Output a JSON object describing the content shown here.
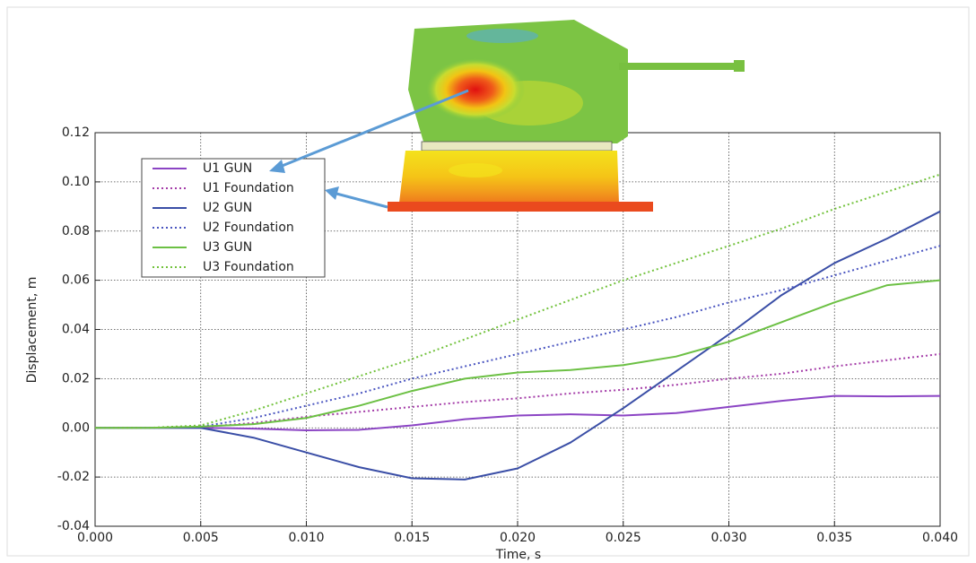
{
  "chart_data": {
    "type": "line",
    "x_label": "Time, s",
    "y_label": "Displacement, m",
    "x": [
      0,
      0.0025,
      0.005,
      0.0075,
      0.01,
      0.0125,
      0.015,
      0.0175,
      0.02,
      0.0225,
      0.025,
      0.0275,
      0.03,
      0.0325,
      0.035,
      0.0375,
      0.04
    ],
    "series": [
      {
        "name": "U1 GUN",
        "color": "#8b44c4",
        "dash": "solid",
        "values": [
          0,
          0,
          0,
          -0.0003,
          -0.001,
          -0.0008,
          0.001,
          0.0035,
          0.005,
          0.0055,
          0.005,
          0.006,
          0.0085,
          0.011,
          0.013,
          0.0128,
          0.013
        ]
      },
      {
        "name": "U1 Foundation",
        "color": "#a43ca8",
        "dash": "dotted",
        "values": [
          0,
          0,
          0.0003,
          0.002,
          0.0045,
          0.0065,
          0.0085,
          0.0105,
          0.012,
          0.014,
          0.0155,
          0.0175,
          0.02,
          0.022,
          0.025,
          0.0275,
          0.03
        ]
      },
      {
        "name": "U2 GUN",
        "color": "#3a4ea6",
        "dash": "solid",
        "values": [
          0,
          0,
          0,
          -0.004,
          -0.01,
          -0.016,
          -0.0205,
          -0.021,
          -0.0165,
          -0.006,
          0.008,
          0.023,
          0.038,
          0.054,
          0.067,
          0.077,
          0.088
        ]
      },
      {
        "name": "U2 Foundation",
        "color": "#4a55c0",
        "dash": "dotted",
        "values": [
          0,
          0,
          0.0005,
          0.004,
          0.009,
          0.014,
          0.02,
          0.025,
          0.03,
          0.035,
          0.04,
          0.045,
          0.051,
          0.056,
          0.062,
          0.068,
          0.074
        ]
      },
      {
        "name": "U3 GUN",
        "color": "#6cc044",
        "dash": "solid",
        "values": [
          0,
          0,
          0.0005,
          0.0015,
          0.004,
          0.009,
          0.015,
          0.02,
          0.0225,
          0.0235,
          0.0255,
          0.029,
          0.035,
          0.043,
          0.051,
          0.058,
          0.06
        ]
      },
      {
        "name": "U3 Foundation",
        "color": "#72c23c",
        "dash": "dotted",
        "values": [
          0,
          0,
          0.001,
          0.007,
          0.014,
          0.021,
          0.028,
          0.036,
          0.044,
          0.052,
          0.06,
          0.067,
          0.074,
          0.081,
          0.089,
          0.096,
          0.103
        ]
      }
    ],
    "xlim": [
      0,
      0.04
    ],
    "ylim": [
      -0.04,
      0.12
    ],
    "xticks": [
      {
        "value": 0,
        "label": "0.000"
      },
      {
        "value": 0.005,
        "label": "0.005"
      },
      {
        "value": 0.01,
        "label": "0.010"
      },
      {
        "value": 0.015,
        "label": "0.015"
      },
      {
        "value": 0.02,
        "label": "0.020"
      },
      {
        "value": 0.025,
        "label": "0.025"
      },
      {
        "value": 0.03,
        "label": "0.030"
      },
      {
        "value": 0.035,
        "label": "0.035"
      },
      {
        "value": 0.04,
        "label": "0.040"
      }
    ],
    "yticks": [
      {
        "value": -0.04,
        "label": "-0.04"
      },
      {
        "value": -0.02,
        "label": "-0.02"
      },
      {
        "value": 0,
        "label": "0.00"
      },
      {
        "value": 0.02,
        "label": "0.02"
      },
      {
        "value": 0.04,
        "label": "0.04"
      },
      {
        "value": 0.06,
        "label": "0.06"
      },
      {
        "value": 0.08,
        "label": "0.08"
      },
      {
        "value": 0.1,
        "label": "0.10"
      },
      {
        "value": 0.12,
        "label": "0.12"
      }
    ],
    "grid": true,
    "legend": "upper-left"
  }
}
